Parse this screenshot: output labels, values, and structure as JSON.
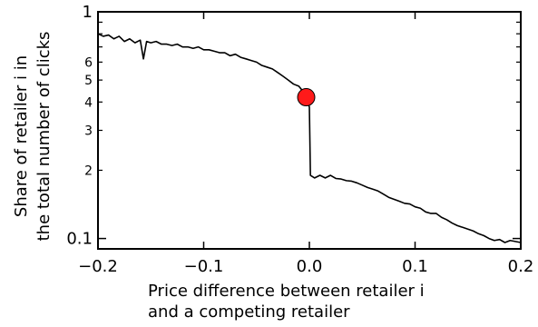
{
  "chart_data": {
    "type": "line",
    "title": "",
    "xlabel_lines": [
      "Price difference between retailer i",
      "and a competing retailer"
    ],
    "ylabel_lines": [
      "Share of retailer i in",
      "the total number of clicks"
    ],
    "xlim": [
      -0.2,
      0.2
    ],
    "ylim": [
      0.09,
      1.0
    ],
    "yscale": "log",
    "x_ticks": [
      {
        "value": -0.2,
        "label": "−0.2"
      },
      {
        "value": -0.1,
        "label": "−0.1"
      },
      {
        "value": 0.0,
        "label": "0.0"
      },
      {
        "value": 0.1,
        "label": "0.1"
      },
      {
        "value": 0.2,
        "label": "0.2"
      }
    ],
    "y_ticks_major": [
      {
        "value": 0.1,
        "label": "0.1"
      },
      {
        "value": 1.0,
        "label": "1"
      }
    ],
    "y_ticks_minor": [
      {
        "value": 0.2,
        "label": "2"
      },
      {
        "value": 0.3,
        "label": "3"
      },
      {
        "value": 0.4,
        "label": "4"
      },
      {
        "value": 0.5,
        "label": "5"
      },
      {
        "value": 0.6,
        "label": "6"
      }
    ],
    "y_ticks_unlabeled": [
      0.7,
      0.8,
      0.9
    ],
    "series": [
      {
        "color": "#000000",
        "points": [
          [
            -0.2,
            0.8
          ],
          [
            -0.195,
            0.78
          ],
          [
            -0.19,
            0.79
          ],
          [
            -0.185,
            0.76
          ],
          [
            -0.18,
            0.78
          ],
          [
            -0.175,
            0.74
          ],
          [
            -0.17,
            0.76
          ],
          [
            -0.165,
            0.73
          ],
          [
            -0.16,
            0.75
          ],
          [
            -0.157,
            0.62
          ],
          [
            -0.154,
            0.74
          ],
          [
            -0.15,
            0.73
          ],
          [
            -0.145,
            0.74
          ],
          [
            -0.14,
            0.72
          ],
          [
            -0.135,
            0.72
          ],
          [
            -0.13,
            0.71
          ],
          [
            -0.125,
            0.72
          ],
          [
            -0.12,
            0.7
          ],
          [
            -0.115,
            0.7
          ],
          [
            -0.11,
            0.69
          ],
          [
            -0.105,
            0.7
          ],
          [
            -0.1,
            0.68
          ],
          [
            -0.095,
            0.68
          ],
          [
            -0.09,
            0.67
          ],
          [
            -0.085,
            0.66
          ],
          [
            -0.08,
            0.66
          ],
          [
            -0.075,
            0.64
          ],
          [
            -0.07,
            0.65
          ],
          [
            -0.065,
            0.63
          ],
          [
            -0.06,
            0.62
          ],
          [
            -0.055,
            0.61
          ],
          [
            -0.05,
            0.6
          ],
          [
            -0.045,
            0.58
          ],
          [
            -0.04,
            0.57
          ],
          [
            -0.035,
            0.56
          ],
          [
            -0.03,
            0.54
          ],
          [
            -0.025,
            0.52
          ],
          [
            -0.02,
            0.5
          ],
          [
            -0.015,
            0.48
          ],
          [
            -0.01,
            0.47
          ],
          [
            -0.005,
            0.44
          ],
          [
            -0.003,
            0.42
          ],
          [
            0.0,
            0.38
          ],
          [
            0.001,
            0.19
          ],
          [
            0.005,
            0.185
          ],
          [
            0.01,
            0.19
          ],
          [
            0.015,
            0.185
          ],
          [
            0.02,
            0.19
          ],
          [
            0.025,
            0.184
          ],
          [
            0.03,
            0.183
          ],
          [
            0.035,
            0.18
          ],
          [
            0.04,
            0.179
          ],
          [
            0.045,
            0.176
          ],
          [
            0.05,
            0.172
          ],
          [
            0.055,
            0.168
          ],
          [
            0.06,
            0.165
          ],
          [
            0.065,
            0.162
          ],
          [
            0.07,
            0.157
          ],
          [
            0.075,
            0.152
          ],
          [
            0.08,
            0.149
          ],
          [
            0.085,
            0.146
          ],
          [
            0.09,
            0.143
          ],
          [
            0.095,
            0.142
          ],
          [
            0.1,
            0.138
          ],
          [
            0.105,
            0.136
          ],
          [
            0.11,
            0.131
          ],
          [
            0.115,
            0.129
          ],
          [
            0.12,
            0.129
          ],
          [
            0.125,
            0.124
          ],
          [
            0.13,
            0.121
          ],
          [
            0.135,
            0.117
          ],
          [
            0.14,
            0.114
          ],
          [
            0.145,
            0.112
          ],
          [
            0.15,
            0.11
          ],
          [
            0.155,
            0.108
          ],
          [
            0.16,
            0.105
          ],
          [
            0.165,
            0.103
          ],
          [
            0.17,
            0.1
          ],
          [
            0.175,
            0.098
          ],
          [
            0.18,
            0.099
          ],
          [
            0.185,
            0.096
          ],
          [
            0.19,
            0.098
          ],
          [
            0.195,
            0.097
          ],
          [
            0.2,
            0.096
          ]
        ]
      }
    ],
    "highlight_point": {
      "x": -0.003,
      "y": 0.42,
      "color": "#ff1a1a"
    }
  }
}
